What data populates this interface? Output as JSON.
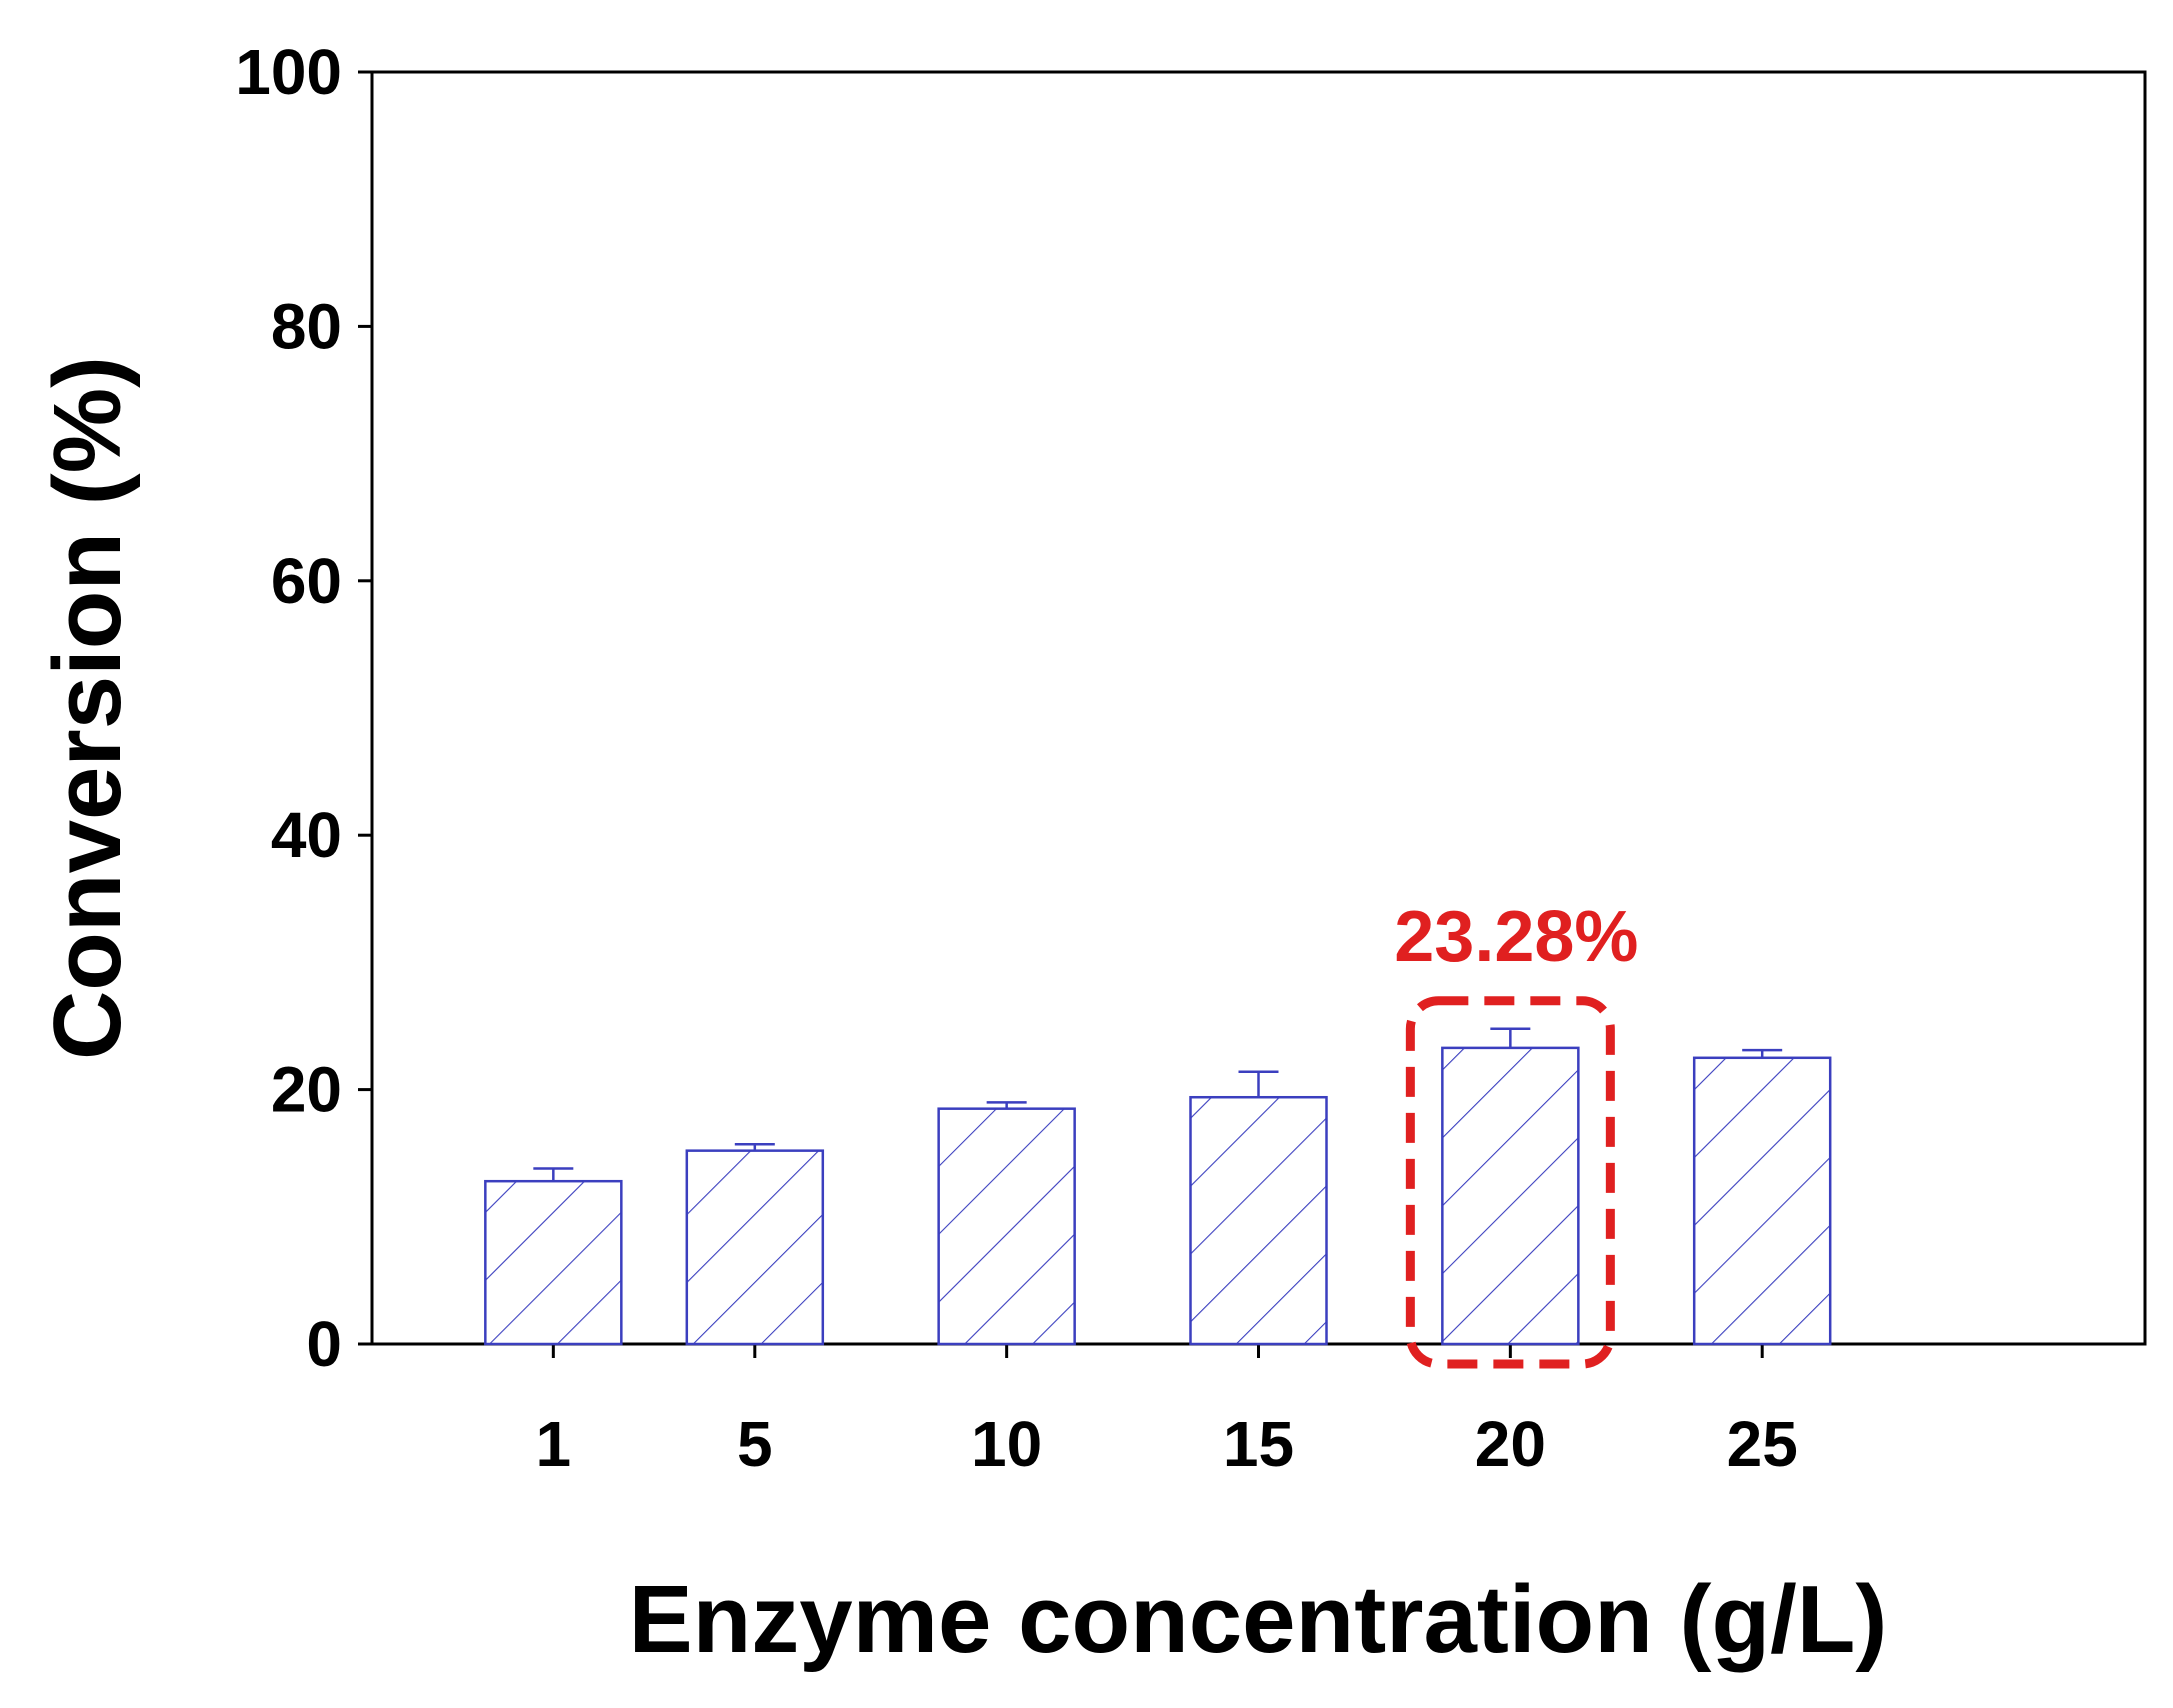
{
  "chart_data": {
    "type": "bar",
    "title": "",
    "xlabel": "Enzyme concentration (g/L)",
    "ylabel": "Conversion (%)",
    "categories": [
      "1",
      "5",
      "10",
      "15",
      "20",
      "25"
    ],
    "x": [
      1,
      5,
      10,
      15,
      20,
      25
    ],
    "values": [
      12.8,
      15.2,
      18.5,
      19.4,
      23.28,
      22.5
    ],
    "error_upper": [
      1.0,
      0.5,
      0.5,
      2.0,
      1.5,
      0.6
    ],
    "ylim": [
      0,
      100
    ],
    "yticks": [
      0,
      20,
      40,
      60,
      80,
      100
    ],
    "grid": false,
    "legend": "none",
    "bar_style": "hatched",
    "bar_color": "#3b3fbf",
    "annotation": {
      "text": "23.28%",
      "category": "20",
      "color": "#e02020",
      "style": "dashed rounded box"
    }
  }
}
